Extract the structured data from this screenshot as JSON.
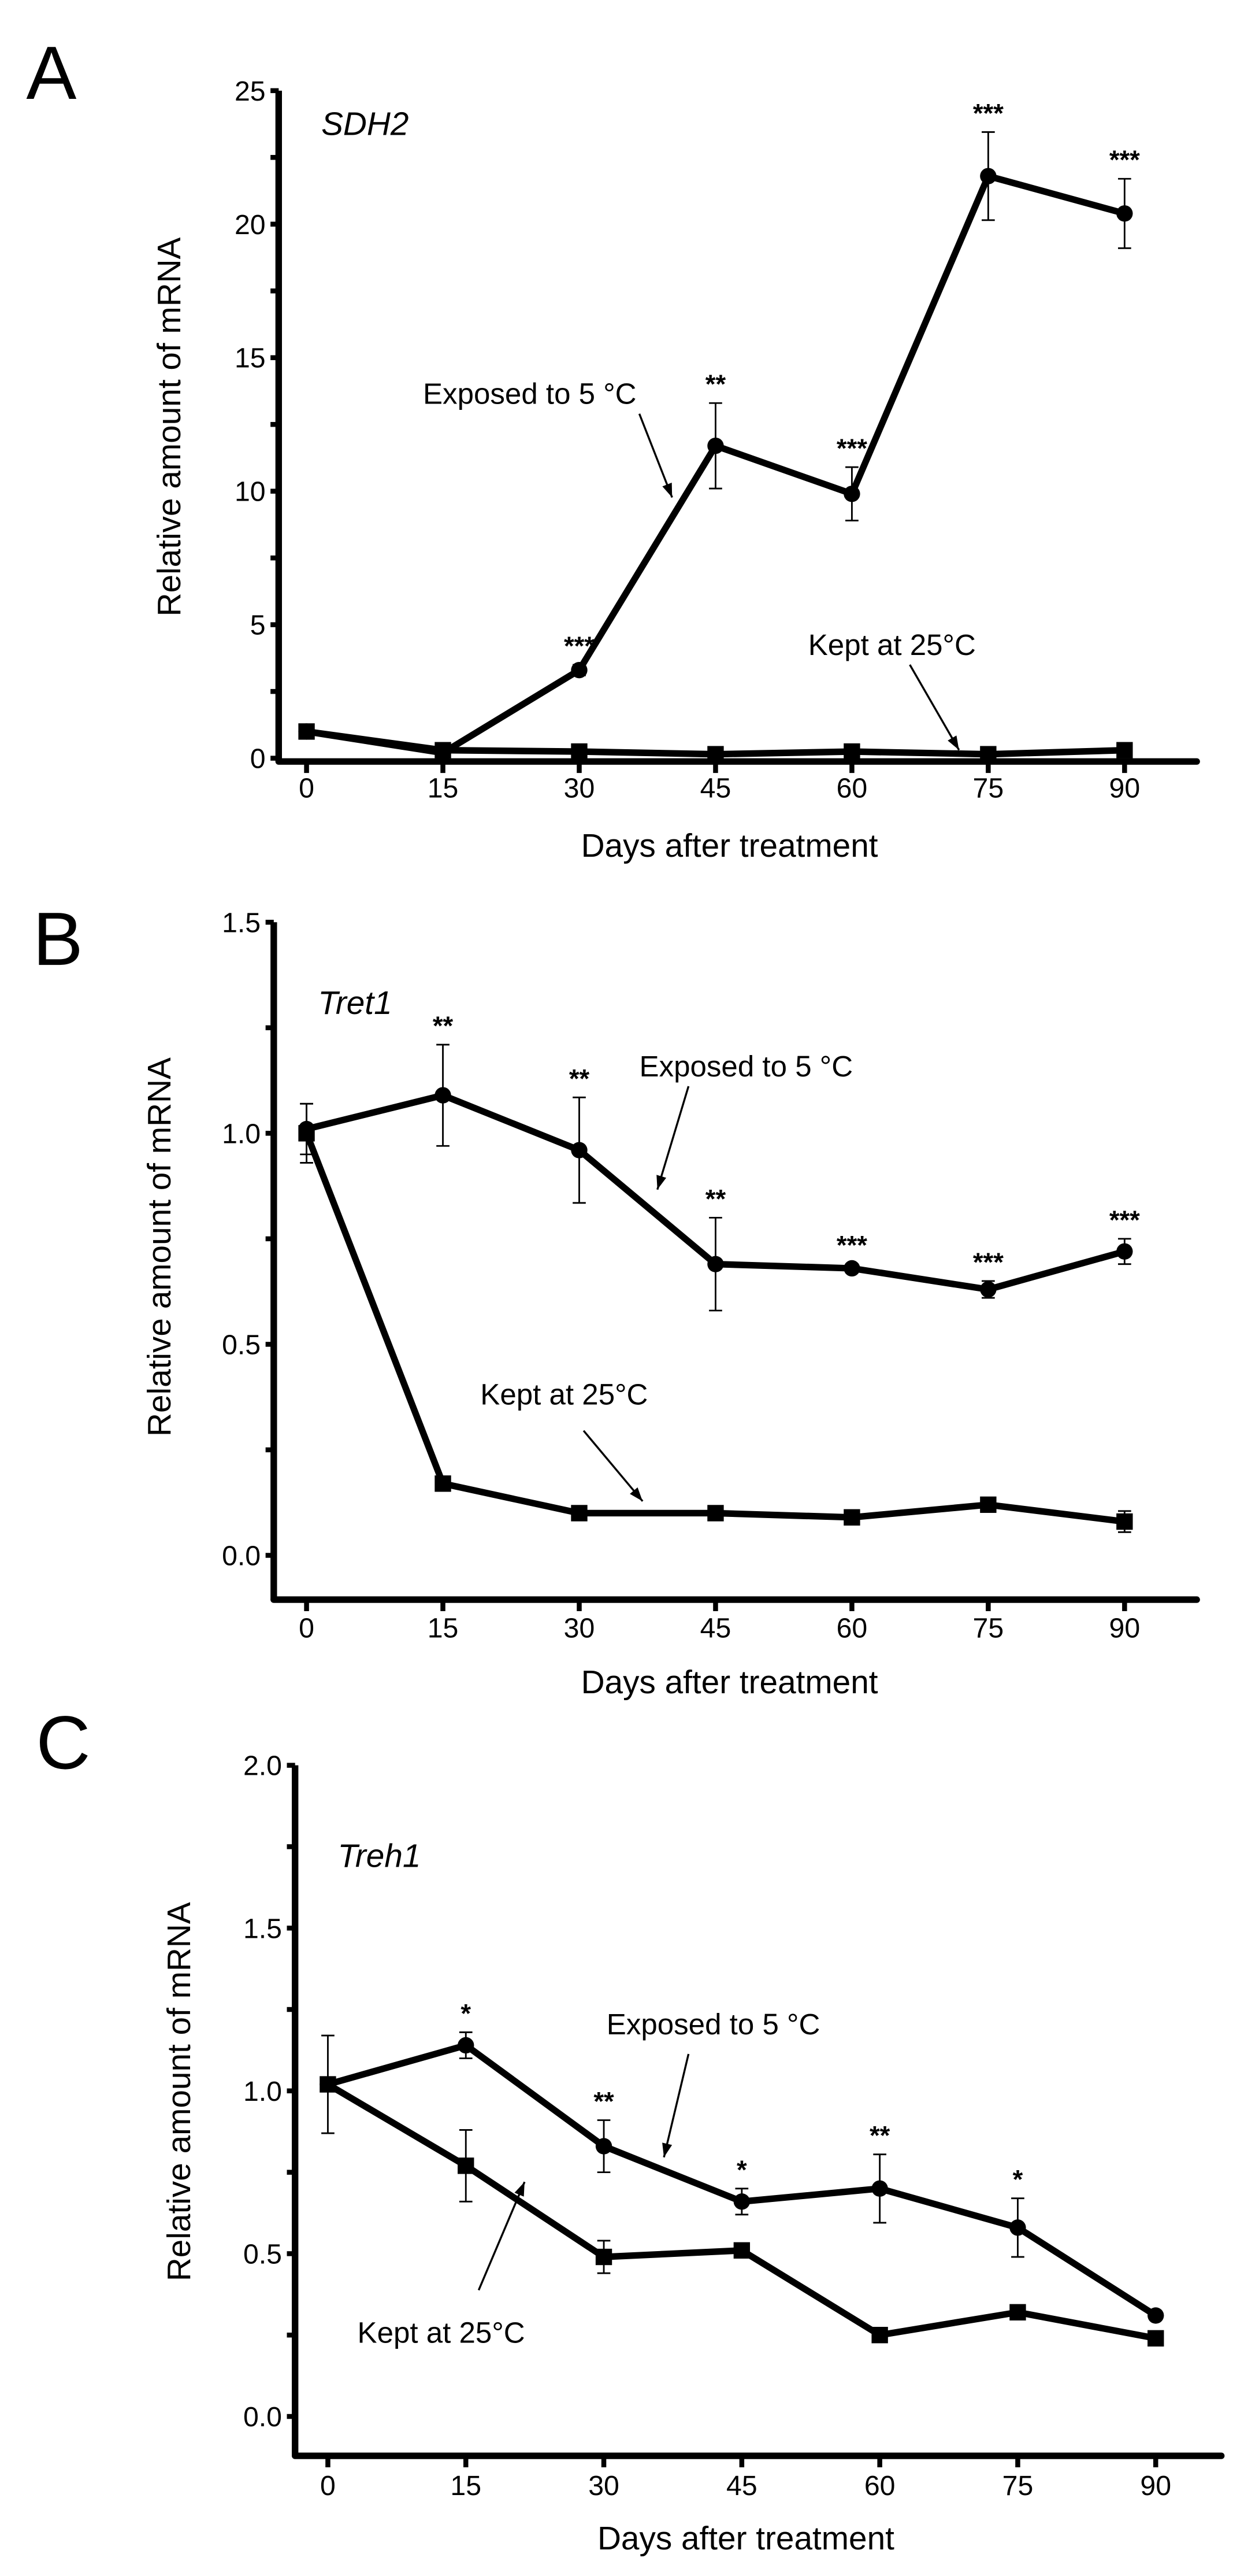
{
  "chart_data": [
    {
      "panel": "A",
      "type": "line",
      "title": "SDH2",
      "xlabel": "Days after treatment",
      "ylabel": "Relative amount of mRNA",
      "x": [
        0,
        15,
        30,
        45,
        60,
        75,
        90
      ],
      "xticks": [
        "0",
        "15",
        "30",
        "45",
        "60",
        "75",
        "90"
      ],
      "yticks": [
        "0",
        "5",
        "10",
        "15",
        "20",
        "25"
      ],
      "ytick_values": [
        0,
        5,
        10,
        15,
        20,
        25
      ],
      "ylim": [
        0,
        25
      ],
      "minor_step": 2.5,
      "series": [
        {
          "name": "Exposed to 5 °C",
          "marker": "circle",
          "values": [
            1.0,
            0.2,
            3.3,
            11.7,
            9.9,
            21.8,
            20.4
          ],
          "errors": [
            0.15,
            0.1,
            0.2,
            1.6,
            1.0,
            1.65,
            1.3
          ],
          "stars": [
            "",
            "",
            "***",
            "**",
            "***",
            "***",
            "***"
          ]
        },
        {
          "name": "Kept at 25°C",
          "marker": "square",
          "values": [
            1.0,
            0.3,
            0.25,
            0.15,
            0.25,
            0.15,
            0.3
          ],
          "errors": [
            0.1,
            0.05,
            0.05,
            0.05,
            0.05,
            0.05,
            0.05
          ],
          "stars": [
            "",
            "",
            "",
            "",
            "",
            "",
            ""
          ]
        }
      ],
      "annotations": {
        "exposed": "Exposed to 5 °C",
        "kept": "Kept at 25°C"
      }
    },
    {
      "panel": "B",
      "type": "line",
      "title": "Tret1",
      "xlabel": "Days after treatment",
      "ylabel": "Relative amount of mRNA",
      "x": [
        0,
        15,
        30,
        45,
        60,
        75,
        90
      ],
      "xticks": [
        "0",
        "15",
        "30",
        "45",
        "60",
        "75",
        "90"
      ],
      "yticks": [
        "0.0",
        "0.5",
        "1.0",
        "1.5"
      ],
      "ytick_values": [
        0,
        0.5,
        1.0,
        1.5
      ],
      "ylim": [
        0,
        1.5
      ],
      "minor_step": 0.25,
      "series": [
        {
          "name": "Exposed to 5 °C",
          "marker": "circle",
          "values": [
            1.01,
            1.09,
            0.96,
            0.69,
            0.68,
            0.63,
            0.72
          ],
          "errors": [
            0.06,
            0.12,
            0.125,
            0.11,
            0.01,
            0.02,
            0.03
          ],
          "stars": [
            "",
            "**",
            "**",
            "**",
            "***",
            "***",
            "***"
          ]
        },
        {
          "name": "Kept at 25°C",
          "marker": "square",
          "values": [
            1.0,
            0.17,
            0.1,
            0.1,
            0.09,
            0.12,
            0.08
          ],
          "errors": [
            0.07,
            0.01,
            0.01,
            0.01,
            0.01,
            0.01,
            0.025
          ],
          "stars": [
            "",
            "",
            "",
            "",
            "",
            "",
            ""
          ]
        }
      ],
      "annotations": {
        "exposed": "Exposed to 5 °C",
        "kept": "Kept at 25°C"
      }
    },
    {
      "panel": "C",
      "type": "line",
      "title": "Treh1",
      "xlabel": "Days after treatment",
      "ylabel": "Relative amount of mRNA",
      "x": [
        0,
        15,
        30,
        45,
        60,
        75,
        90
      ],
      "xticks": [
        "0",
        "15",
        "30",
        "45",
        "60",
        "75",
        "90"
      ],
      "yticks": [
        "0.0",
        "0.5",
        "1.0",
        "1.5",
        "2.0"
      ],
      "ytick_values": [
        0,
        0.5,
        1.0,
        1.5,
        2.0
      ],
      "ylim": [
        0,
        2.0
      ],
      "minor_step": 0.25,
      "series": [
        {
          "name": "Exposed to 5 °C",
          "marker": "circle",
          "values": [
            1.02,
            1.14,
            0.83,
            0.66,
            0.7,
            0.58,
            0.31
          ],
          "errors": [
            0.15,
            0.04,
            0.08,
            0.04,
            0.105,
            0.09,
            0.01
          ],
          "stars": [
            "",
            "*",
            "**",
            "*",
            "**",
            "*",
            ""
          ]
        },
        {
          "name": "Kept at 25°C",
          "marker": "square",
          "values": [
            1.02,
            0.77,
            0.49,
            0.51,
            0.25,
            0.32,
            0.24
          ],
          "errors": [
            0.02,
            0.11,
            0.05,
            0.01,
            0.01,
            0.01,
            0.01
          ],
          "stars": [
            "",
            "",
            "",
            "",
            "",
            "",
            ""
          ]
        }
      ],
      "annotations": {
        "exposed": "Exposed to 5 °C",
        "kept": "Kept at 25°C"
      }
    }
  ]
}
